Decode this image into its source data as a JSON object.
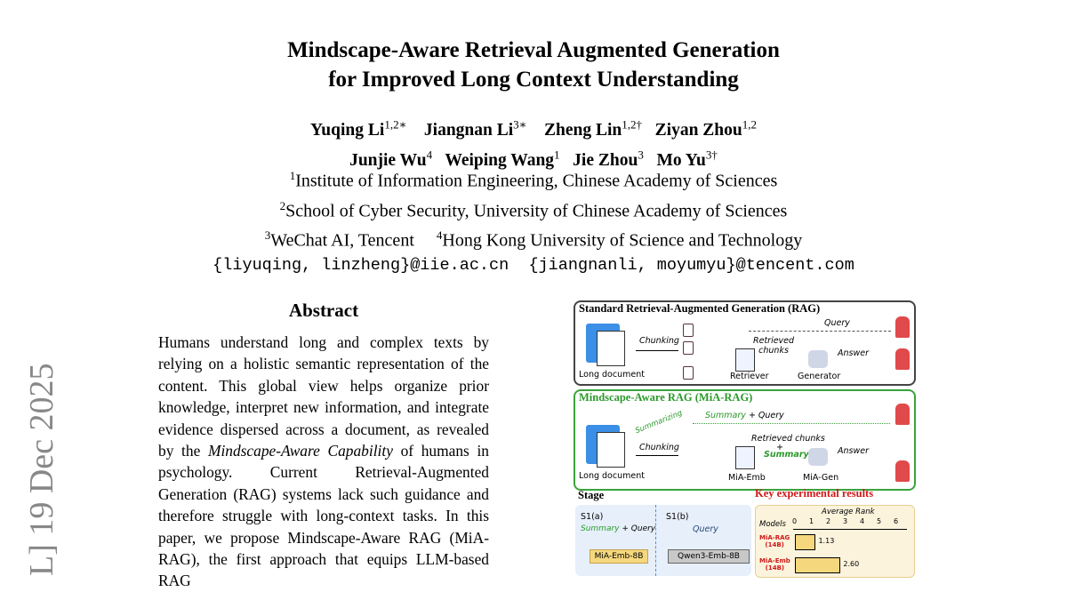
{
  "title": {
    "line1": "Mindscape-Aware Retrieval Augmented Generation",
    "line2": "for Improved Long Context Understanding"
  },
  "authors": [
    {
      "name": "Yuqing Li",
      "sup": "1,2∗"
    },
    {
      "name": "Jiangnan Li",
      "sup": "3∗"
    },
    {
      "name": "Zheng Lin",
      "sup": "1,2†"
    },
    {
      "name": "Ziyan Zhou",
      "sup": "1,2"
    },
    {
      "name": "Junjie Wu",
      "sup": "4"
    },
    {
      "name": "Weiping Wang",
      "sup": "1"
    },
    {
      "name": "Jie Zhou",
      "sup": "3"
    },
    {
      "name": "Mo Yu",
      "sup": "3†"
    }
  ],
  "affiliations": [
    {
      "sup": "1",
      "name": "Institute of Information Engineering, Chinese Academy of Sciences"
    },
    {
      "sup": "2",
      "name": "School of Cyber Security, University of Chinese Academy of Sciences"
    },
    {
      "sup": "3",
      "name": "WeChat AI, Tencent"
    },
    {
      "sup": "4",
      "name": "Hong Kong University of Science and Technology"
    }
  ],
  "emails": {
    "a": "{liyuqing, linzheng}@iie.ac.cn",
    "b": "{jiangnanli, moyumyu}@tencent.com"
  },
  "arxiv_stamp": "L]  19 Dec 2025",
  "abstract": {
    "heading": "Abstract",
    "p1": "Humans understand long and complex texts by relying on a holistic semantic representation of the content. This global view helps organize prior knowledge, interpret new information, and integrate evidence dispersed across a document, as revealed by the ",
    "p_em": "Mindscape-Aware Capability",
    "p2": " of humans in psychology. Current Retrieval-Augmented Generation (RAG) systems lack such guidance and therefore struggle with long-context tasks. In this paper, we propose Mindscape-Aware RAG (MiA-RAG), the first approach that equips LLM-based RAG"
  },
  "figure": {
    "rag": {
      "title": "Standard Retrieval-Augmented Generation (RAG)",
      "long_doc": "Long document",
      "chunking": "Chunking",
      "query": "Query",
      "retrieved": "Retrieved",
      "chunks": "chunks",
      "retriever": "Retriever",
      "generator": "Generator",
      "answer": "Answer"
    },
    "mia": {
      "title": "Mindscape-Aware RAG (MiA-RAG)",
      "summarizing": "Summarizing",
      "summary": "Summary",
      "plus_query": "+ Query",
      "long_doc": "Long document",
      "chunking": "Chunking",
      "retrieved_chunks": "Retrieved chunks",
      "plus": "+",
      "summary2": "Summary",
      "emb": "MiA-Emb",
      "gen": "MiA-Gen",
      "answer": "Answer"
    },
    "stage": {
      "heading": "Stage",
      "s1a": "S1(a)",
      "s1a_summary": "Summary",
      "s1a_query": "+ Query",
      "s1a_model": "MiA-Emb-8B",
      "s1b": "S1(b)",
      "s1b_query": "Query",
      "s1b_model": "Qwen3-Emb-8B"
    },
    "results": {
      "heading": "Key experimental results",
      "axis_title": "Average Rank",
      "models_label": "Models",
      "ticks": [
        "0",
        "1",
        "2",
        "3",
        "4",
        "5",
        "6"
      ],
      "bars": [
        {
          "model": "MiA-RAG",
          "size": "(14B)",
          "value": 1.13,
          "label": "1.13"
        },
        {
          "model": "MiA-Emb",
          "size": "(14B)",
          "value": 2.6,
          "label": "2.60"
        }
      ]
    },
    "colors": {
      "green": "#2a9a2a",
      "red": "#d01818",
      "stage_bg": "#e6effa",
      "results_bg": "#fbf3dc",
      "bar": "#f5d77e"
    }
  }
}
